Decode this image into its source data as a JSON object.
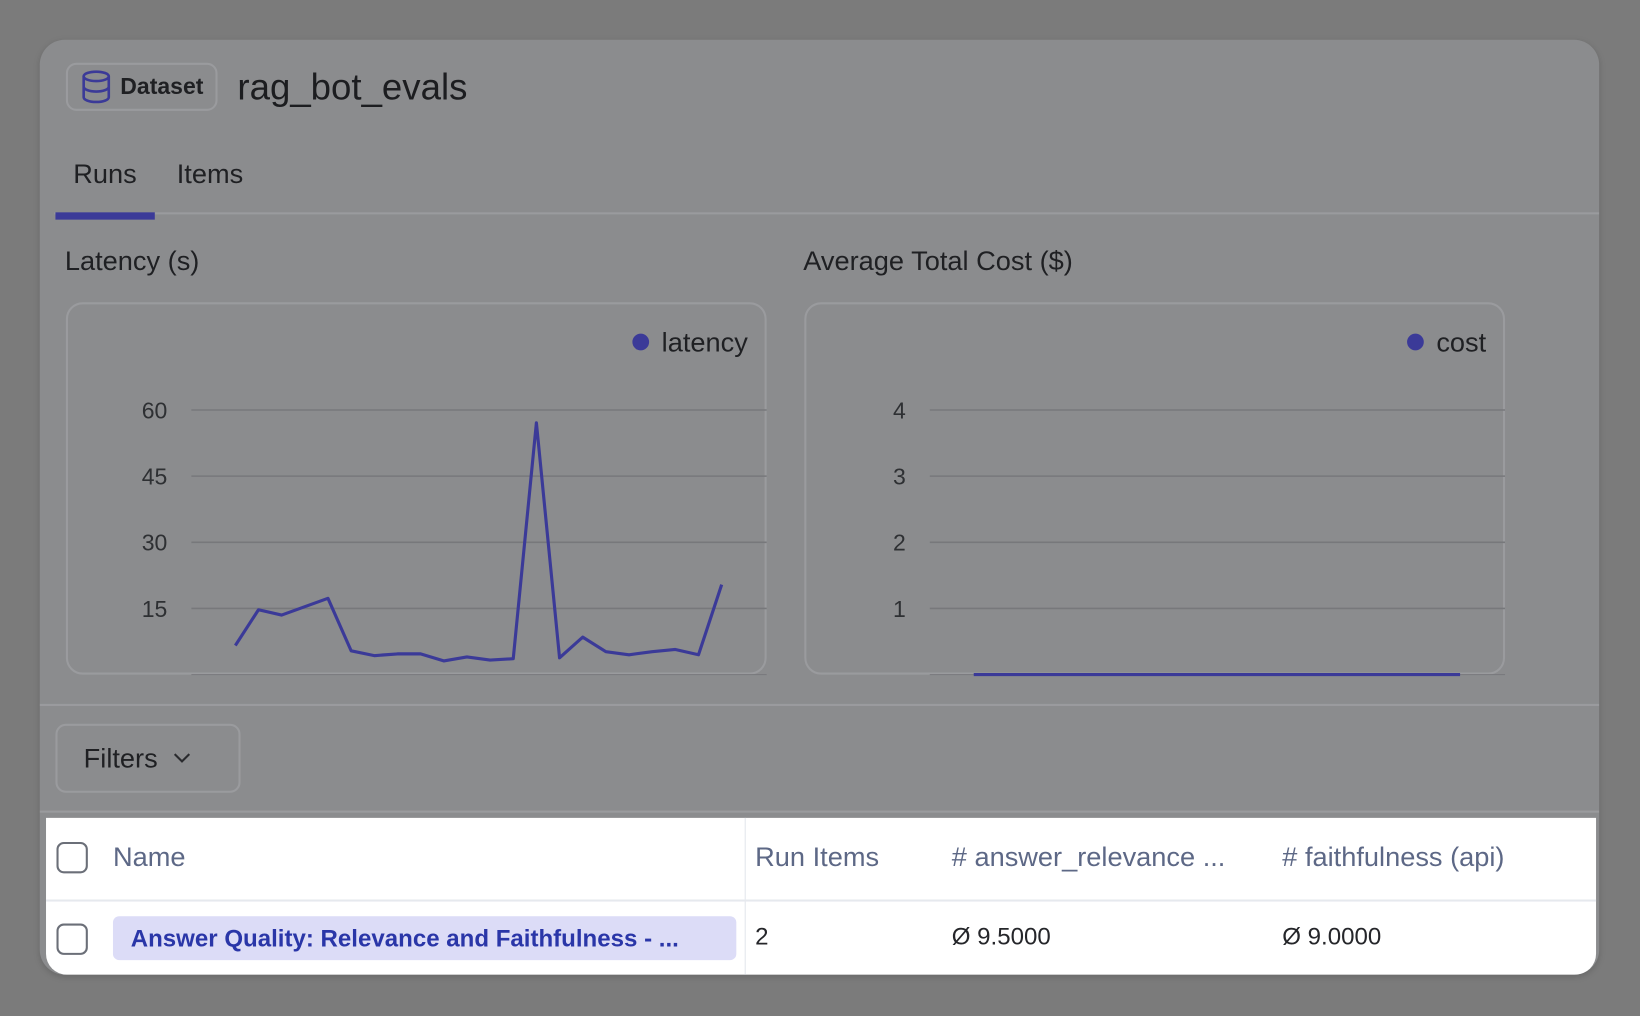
{
  "header": {
    "badge_label": "Dataset",
    "badge_icon": "database-icon",
    "title": "rag_bot_evals"
  },
  "tabs": [
    {
      "label": "Runs",
      "active": true
    },
    {
      "label": "Items",
      "active": false
    }
  ],
  "colors": {
    "accent": "#3b3a98",
    "link_bg": "#dcdcf7",
    "link_text": "#2a36a8"
  },
  "filters": {
    "label": "Filters"
  },
  "chart_data": [
    {
      "type": "line",
      "title": "Latency (s)",
      "legend": [
        "latency"
      ],
      "legend_position": "top-right",
      "grid": true,
      "yticks": [
        15,
        30,
        45,
        60
      ],
      "ylim": [
        0,
        60
      ],
      "series": [
        {
          "name": "latency",
          "values": [
            6.6,
            14.7,
            13.5,
            15.4,
            17.3,
            5.4,
            4.3,
            4.7,
            4.7,
            3.1,
            4.0,
            3.3,
            3.6,
            57.1,
            3.8,
            8.5,
            5.2,
            4.5,
            5.2,
            5.7,
            4.5,
            20.4
          ]
        }
      ]
    },
    {
      "type": "line",
      "title": "Average Total Cost ($)",
      "legend": [
        "cost"
      ],
      "legend_position": "top-right",
      "grid": true,
      "yticks": [
        1,
        2,
        3,
        4
      ],
      "ylim": [
        0,
        4
      ],
      "series": [
        {
          "name": "cost",
          "values": [
            0,
            0,
            0,
            0,
            0,
            0,
            0,
            0,
            0,
            0,
            0,
            0,
            0,
            0,
            0,
            0,
            0,
            0,
            0,
            0,
            0,
            0
          ]
        }
      ]
    }
  ],
  "table": {
    "columns": [
      "Name",
      "Run Items",
      "# answer_relevance ...",
      "# faithfulness (api)"
    ],
    "rows": [
      {
        "name": "Answer Quality: Relevance and Faithfulness - ...",
        "run_items": "2",
        "answer_relevance": "Ø 9.5000",
        "faithfulness": "Ø 9.0000"
      }
    ]
  }
}
